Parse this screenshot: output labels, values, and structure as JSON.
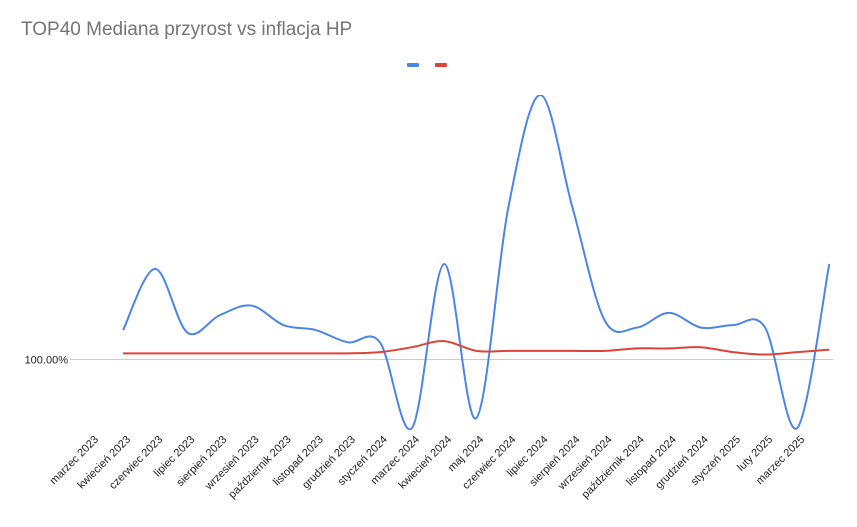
{
  "chart_data": {
    "type": "line",
    "title": "TOP40 Mediana przyrost vs inflacja HP",
    "xlabel": "",
    "ylabel": "",
    "categories": [
      "marzec 2023",
      "kwiecień 2023",
      "czerwiec 2023",
      "lipiec 2023",
      "sierpień 2023",
      "wrzesień 2023",
      "październik 2023",
      "listopad 2023",
      "grudzień 2023",
      "styczeń 2024",
      "marzec 2024",
      "kwiecień 2024",
      "maj 2024",
      "czerwiec 2024",
      "lipiec 2024",
      "sierpień 2024",
      "wrzesień 2024",
      "październik 2024",
      "listopad 2024",
      "grudzień 2024",
      "styczeń 2025",
      "luty 2025",
      "marzec 2025"
    ],
    "y_tick_label": "100.00%",
    "y_tick_value": 100,
    "ylim": [
      97.2,
      110.8
    ],
    "legend": "top",
    "grid": false,
    "series": [
      {
        "color": "#4a86e8",
        "values": [
          101.2,
          103.7,
          101.1,
          101.8,
          102.2,
          101.4,
          101.2,
          100.7,
          100.7,
          97.2,
          103.9,
          97.6,
          106.2,
          110.8,
          106.2,
          101.6,
          101.3,
          101.9,
          101.3,
          101.4,
          101.3,
          97.2,
          103.9
        ]
      },
      {
        "color": "#db4437",
        "values": [
          100.25,
          100.25,
          100.25,
          100.25,
          100.25,
          100.25,
          100.25,
          100.25,
          100.3,
          100.5,
          100.75,
          100.35,
          100.35,
          100.35,
          100.35,
          100.35,
          100.45,
          100.45,
          100.5,
          100.3,
          100.2,
          100.3,
          100.4
        ]
      }
    ]
  }
}
